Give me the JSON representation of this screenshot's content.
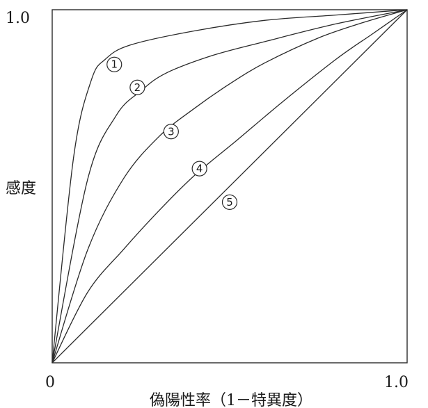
{
  "chart_data": {
    "type": "line",
    "title": "",
    "xlabel": "偽陽性率（1－特異度）",
    "ylabel": "感度",
    "xlim": [
      0,
      1
    ],
    "ylim": [
      0,
      1
    ],
    "x_ticks": [
      "0",
      "1.0"
    ],
    "y_ticks": [
      "1.0"
    ],
    "grid": false,
    "legend": "none",
    "series": [
      {
        "label": "①",
        "points": [
          [
            0,
            0
          ],
          [
            0.06,
            0.58
          ],
          [
            0.11,
            0.8
          ],
          [
            0.15,
            0.86
          ],
          [
            0.22,
            0.9
          ],
          [
            0.4,
            0.94
          ],
          [
            0.6,
            0.97
          ],
          [
            0.8,
            0.985
          ],
          [
            1,
            1
          ]
        ],
        "label_at": [
          0.175,
          0.845
        ]
      },
      {
        "label": "②",
        "points": [
          [
            0,
            0
          ],
          [
            0.1,
            0.52
          ],
          [
            0.18,
            0.7
          ],
          [
            0.25,
            0.77
          ],
          [
            0.32,
            0.82
          ],
          [
            0.45,
            0.87
          ],
          [
            0.6,
            0.91
          ],
          [
            0.8,
            0.96
          ],
          [
            1,
            1
          ]
        ],
        "label_at": [
          0.24,
          0.78
        ]
      },
      {
        "label": "③",
        "points": [
          [
            0,
            0
          ],
          [
            0.1,
            0.32
          ],
          [
            0.2,
            0.52
          ],
          [
            0.3,
            0.64
          ],
          [
            0.4,
            0.72
          ],
          [
            0.5,
            0.79
          ],
          [
            0.6,
            0.85
          ],
          [
            0.75,
            0.92
          ],
          [
            0.88,
            0.965
          ],
          [
            1,
            1
          ]
        ],
        "label_at": [
          0.335,
          0.655
        ]
      },
      {
        "label": "④",
        "points": [
          [
            0,
            0
          ],
          [
            0.1,
            0.2
          ],
          [
            0.2,
            0.32
          ],
          [
            0.3,
            0.43
          ],
          [
            0.4,
            0.53
          ],
          [
            0.52,
            0.63
          ],
          [
            0.65,
            0.74
          ],
          [
            0.8,
            0.86
          ],
          [
            0.9,
            0.93
          ],
          [
            1,
            1
          ]
        ],
        "label_at": [
          0.415,
          0.55
        ]
      },
      {
        "label": "⑤",
        "points": [
          [
            0,
            0
          ],
          [
            1,
            1
          ]
        ],
        "label_at": [
          0.5,
          0.455
        ]
      }
    ]
  }
}
